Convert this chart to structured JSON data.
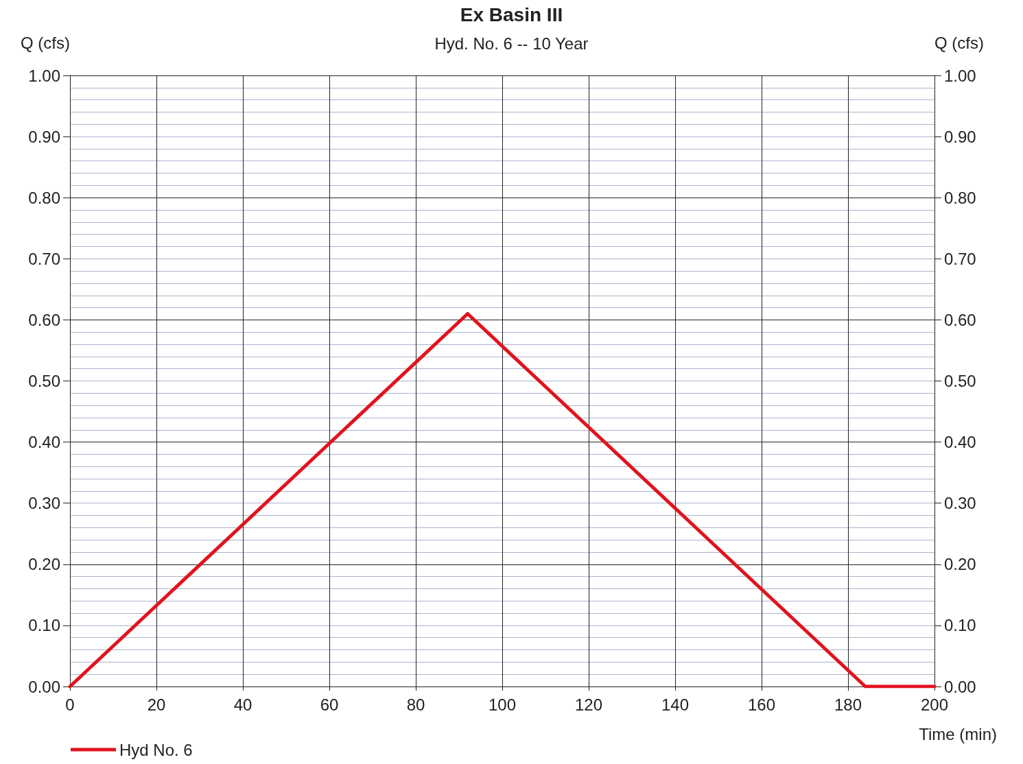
{
  "chart_data": {
    "type": "line",
    "title": "Ex Basin III",
    "subtitle": "Hyd. No. 6 -- 10 Year",
    "xlabel": "Time (min)",
    "ylabel": "Q (cfs)",
    "y2label": "Q (cfs)",
    "series": [
      {
        "name": "Hyd No. 6",
        "color": "#e0141e",
        "x": [
          0,
          92,
          184,
          200
        ],
        "values": [
          0,
          0.61,
          0,
          0
        ]
      }
    ],
    "xlim": [
      0,
      200
    ],
    "xticks": [
      0,
      20,
      40,
      60,
      80,
      100,
      120,
      140,
      160,
      180,
      200
    ],
    "ylim": [
      0,
      1
    ],
    "yticks": [
      {
        "value": 0,
        "label": "0.00"
      },
      {
        "value": 0.1,
        "label": "0.10"
      },
      {
        "value": 0.2,
        "label": "0.20"
      },
      {
        "value": 0.3,
        "label": "0.30"
      },
      {
        "value": 0.4,
        "label": "0.40"
      },
      {
        "value": 0.5,
        "label": "0.50"
      },
      {
        "value": 0.6,
        "label": "0.60"
      },
      {
        "value": 0.7,
        "label": "0.70"
      },
      {
        "value": 0.8,
        "label": "0.80"
      },
      {
        "value": 0.9,
        "label": "0.90"
      },
      {
        "value": 1,
        "label": "1.00"
      }
    ],
    "y2lim": [
      0,
      1
    ],
    "y2ticks": [
      {
        "value": 0,
        "label": "0.00"
      },
      {
        "value": 0.1,
        "label": "0.10"
      },
      {
        "value": 0.2,
        "label": "0.20"
      },
      {
        "value": 0.3,
        "label": "0.30"
      },
      {
        "value": 0.4,
        "label": "0.40"
      },
      {
        "value": 0.5,
        "label": "0.50"
      },
      {
        "value": 0.6,
        "label": "0.60"
      },
      {
        "value": 0.7,
        "label": "0.70"
      },
      {
        "value": 0.8,
        "label": "0.80"
      },
      {
        "value": 0.9,
        "label": "0.90"
      },
      {
        "value": 1,
        "label": "1.00"
      }
    ],
    "grid": true,
    "legend": "bottom left",
    "marker": "none",
    "line_style": "solid"
  }
}
